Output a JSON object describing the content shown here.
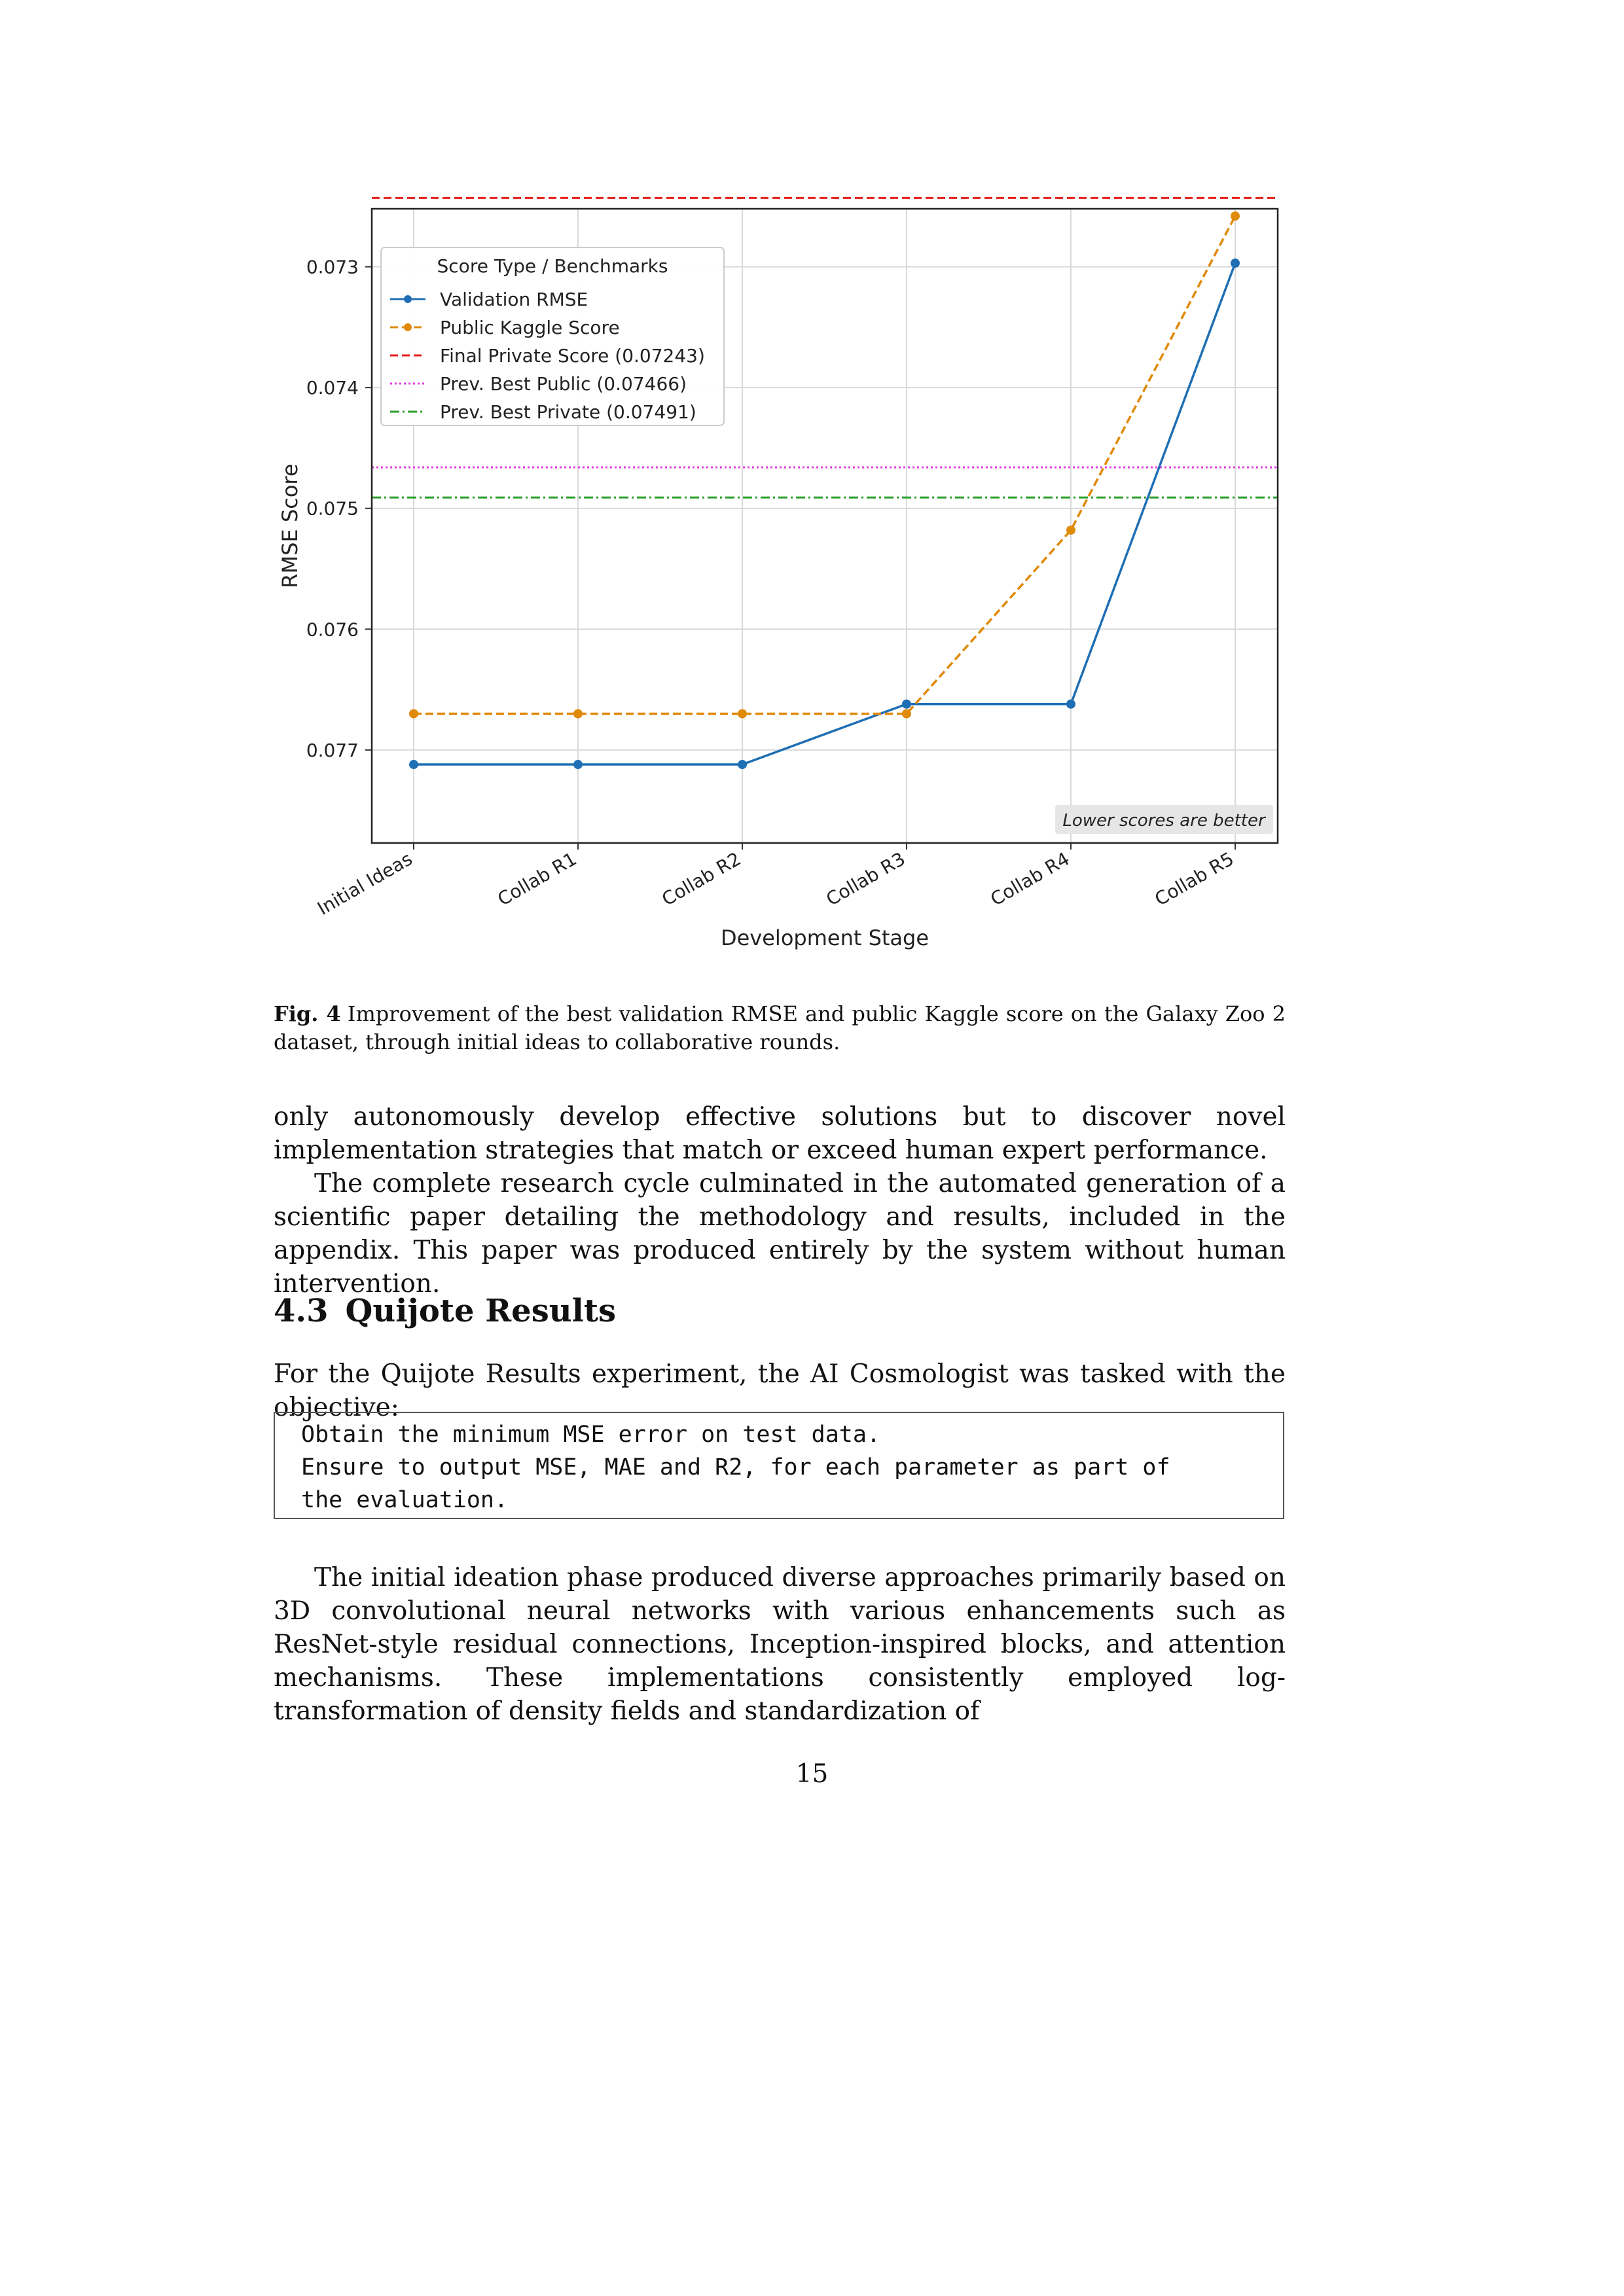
{
  "chart_data": {
    "type": "line",
    "xlabel": "Development Stage",
    "ylabel": "RMSE Score",
    "y_axis_inverted": true,
    "ylim": [
      0.07777,
      0.07252
    ],
    "yticks": [
      "0.073",
      "0.074",
      "0.075",
      "0.076",
      "0.077"
    ],
    "categories": [
      "Initial Ideas",
      "Collab R1",
      "Collab R2",
      "Collab R3",
      "Collab R4",
      "Collab R5"
    ],
    "grid": true,
    "legend": {
      "title": "Score Type / Benchmarks",
      "placement": "top-left"
    },
    "series": [
      {
        "name": "Validation RMSE",
        "style": "solid",
        "marker": "circle",
        "color": "#1f6fb4",
        "values": [
          0.07712,
          0.07712,
          0.07712,
          0.07662,
          0.07662,
          0.07297
        ]
      },
      {
        "name": "Public Kaggle Score",
        "style": "dashed",
        "marker": "circle",
        "color": "#e08a0a",
        "values": [
          0.0767,
          0.0767,
          0.0767,
          0.0767,
          0.07518,
          0.07258
        ]
      }
    ],
    "reference_lines": [
      {
        "name": "Final Private Score (0.07243)",
        "value": 0.07243,
        "style": "dashed",
        "color": "#e8201c"
      },
      {
        "name": "Prev. Best Public (0.07466)",
        "value": 0.07466,
        "style": "dotted",
        "color": "#e63ce6"
      },
      {
        "name": "Prev. Best Private (0.07491)",
        "value": 0.07491,
        "style": "dashdot",
        "color": "#2ca02c"
      }
    ],
    "annotation": "Lower scores are better"
  },
  "caption": {
    "label": "Fig. 4",
    "text": "Improvement of the best validation RMSE and public Kaggle score on the Galaxy Zoo 2 dataset, through initial ideas to collaborative rounds."
  },
  "body": {
    "p1": "only autonomously develop effective solutions but to discover novel implementation strategies that match or exceed human expert performance.",
    "p2": "The complete research cycle culminated in the automated generation of a scientific paper detailing the methodology and results, included in the appendix. This paper was produced entirely by the system without human intervention.",
    "section_number": "4.3",
    "section_title": "Quijote Results",
    "p3": "For the Quijote Results experiment, the AI Cosmologist was tasked with the objective:",
    "code": "Obtain the minimum MSE error on test data.\nEnsure to output MSE, MAE and R2, for each parameter as part of\nthe evaluation.",
    "p4": "The initial ideation phase produced diverse approaches primarily based on 3D convolutional neural networks with various enhancements such as ResNet-style residual connections, Inception-inspired blocks, and attention mechanisms. These implementations consistently employed log-transformation of density fields and standardization of"
  },
  "page_number": "15"
}
